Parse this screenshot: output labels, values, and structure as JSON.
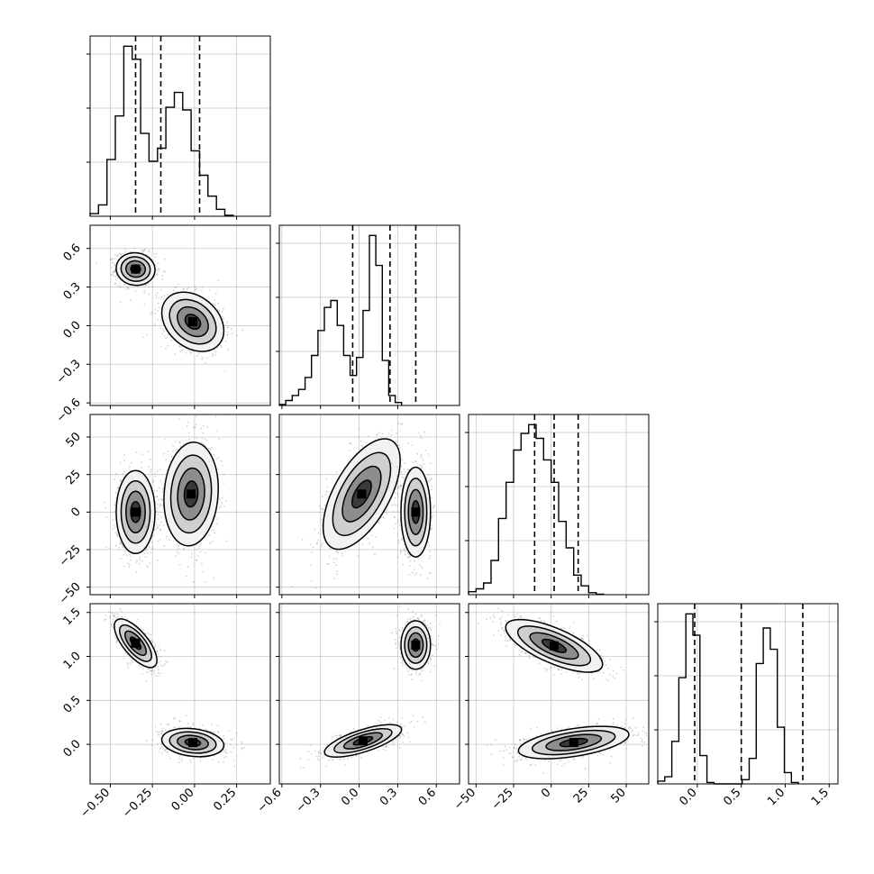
{
  "chart_data": {
    "type": "corner",
    "parameters": [
      {
        "key": "p0",
        "range": [
          -0.62,
          0.45
        ],
        "ticks": [
          -0.5,
          -0.25,
          0.0,
          0.25
        ],
        "tick_labels": [
          "−0.50",
          "−0.25",
          "0.00",
          "0.25"
        ]
      },
      {
        "key": "p1",
        "range": [
          -0.62,
          0.78
        ],
        "ticks": [
          -0.6,
          -0.3,
          0.0,
          0.3,
          0.6
        ],
        "tick_labels": [
          "−0.6",
          "−0.3",
          "0.0",
          "0.3",
          "0.6"
        ]
      },
      {
        "key": "p2",
        "range": [
          -55,
          65
        ],
        "ticks": [
          -50,
          -25,
          0,
          25,
          50
        ],
        "tick_labels": [
          "−50",
          "−25",
          "0",
          "25",
          "50"
        ]
      },
      {
        "key": "p3",
        "range": [
          -0.45,
          1.6
        ],
        "ticks": [
          0.0,
          0.5,
          1.0,
          1.5
        ],
        "tick_labels": [
          "0.0",
          "0.5",
          "1.0",
          "1.5"
        ]
      }
    ],
    "histograms": [
      {
        "param": 0,
        "edges_start": -0.62,
        "bin_width": 0.05,
        "counts": [
          0.3,
          1.3,
          6.5,
          11.5,
          19.5,
          18.0,
          9.5,
          6.3,
          7.8,
          12.5,
          14.2,
          12.2,
          7.5,
          4.7,
          2.3,
          0.8,
          0.1
        ],
        "quantiles": [
          -0.35,
          -0.2,
          0.03
        ]
      },
      {
        "param": 1,
        "edges_start": -0.62,
        "bin_width": 0.05,
        "counts": [
          0.1,
          0.5,
          1.0,
          1.6,
          2.8,
          5.0,
          7.5,
          9.8,
          10.5,
          8.0,
          5.0,
          3.0,
          4.8,
          9.5,
          17.0,
          14.0,
          4.5,
          1.0,
          0.3
        ],
        "quantiles": [
          -0.05,
          0.24,
          0.44
        ]
      },
      {
        "param": 2,
        "edges_start": -55,
        "bin_width": 5,
        "counts": [
          0.3,
          0.6,
          1.2,
          3.5,
          7.8,
          11.5,
          14.8,
          16.5,
          17.4,
          16.0,
          13.8,
          11.5,
          7.5,
          4.8,
          2.0,
          0.9,
          0.2,
          0.05
        ],
        "quantiles": [
          -11,
          2,
          18
        ]
      },
      {
        "param": 3,
        "edges_start": -0.45,
        "bin_width": 0.08,
        "counts": [
          0.2,
          0.5,
          3.0,
          7.5,
          12.0,
          10.5,
          2.0,
          0.1,
          0,
          0,
          0,
          0,
          0.3,
          1.8,
          8.5,
          11.0,
          9.5,
          4.0,
          0.8,
          0.1
        ],
        "quantiles": [
          -0.03,
          0.5,
          1.2
        ]
      }
    ],
    "joint_clusters": [
      {
        "x": 0,
        "y": 1,
        "components": [
          {
            "mean": [
              -0.35,
              0.44
            ],
            "sd": [
              0.05,
              0.055
            ],
            "rho": -0.05,
            "weight": 0.5
          },
          {
            "mean": [
              -0.01,
              0.03
            ],
            "sd": [
              0.08,
              0.1
            ],
            "rho": -0.3,
            "weight": 0.5
          }
        ]
      },
      {
        "x": 0,
        "y": 2,
        "components": [
          {
            "mean": [
              -0.35,
              0.0
            ],
            "sd": [
              0.05,
              12.0
            ],
            "rho": 0.0,
            "weight": 0.5
          },
          {
            "mean": [
              -0.02,
              12.0
            ],
            "sd": [
              0.07,
              15.0
            ],
            "rho": 0.1,
            "weight": 0.5
          }
        ]
      },
      {
        "x": 1,
        "y": 2,
        "components": [
          {
            "mean": [
              0.02,
              12.0
            ],
            "sd": [
              0.13,
              16.0
            ],
            "rho": 0.6,
            "weight": 0.5
          },
          {
            "mean": [
              0.44,
              0.0
            ],
            "sd": [
              0.05,
              13.0
            ],
            "rho": 0.0,
            "weight": 0.5
          }
        ]
      },
      {
        "x": 0,
        "y": 3,
        "components": [
          {
            "mean": [
              -0.35,
              1.15
            ],
            "sd": [
              0.055,
              0.12
            ],
            "rho": -0.7,
            "weight": 0.5
          },
          {
            "mean": [
              -0.01,
              0.02
            ],
            "sd": [
              0.08,
              0.07
            ],
            "rho": -0.2,
            "weight": 0.5
          }
        ]
      },
      {
        "x": 1,
        "y": 3,
        "components": [
          {
            "mean": [
              0.03,
              0.04
            ],
            "sd": [
              0.13,
              0.08
            ],
            "rho": 0.7,
            "weight": 0.5
          },
          {
            "mean": [
              0.44,
              1.13
            ],
            "sd": [
              0.05,
              0.12
            ],
            "rho": 0.0,
            "weight": 0.5
          }
        ]
      },
      {
        "x": 2,
        "y": 3,
        "components": [
          {
            "mean": [
              2,
              1.12
            ],
            "sd": [
              14.0,
              0.13
            ],
            "rho": -0.7,
            "weight": 0.5
          },
          {
            "mean": [
              15,
              0.02
            ],
            "sd": [
              16.0,
              0.08
            ],
            "rho": 0.5,
            "weight": 0.5
          }
        ]
      }
    ],
    "contour_sigma_levels": [
      0.5,
      1.0,
      1.5,
      2.0
    ],
    "grid": true,
    "scatter_color": "#808080",
    "density_color": "#000000"
  }
}
